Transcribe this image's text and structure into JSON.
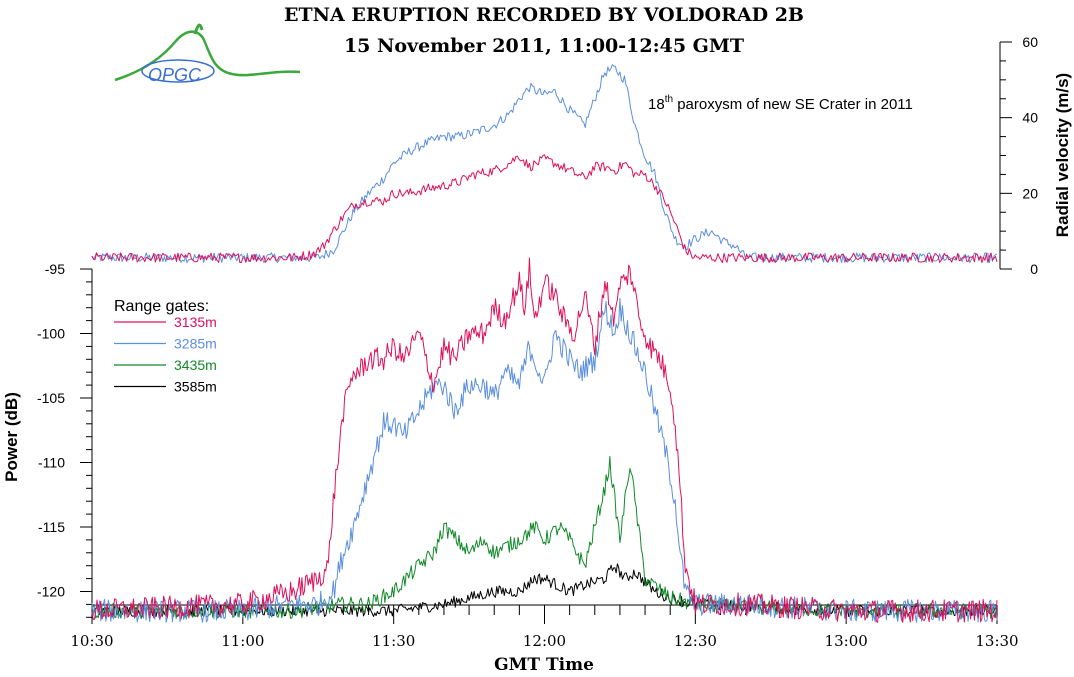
{
  "titles": {
    "line1": "ETNA ERUPTION RECORDED BY VOLDORAD 2B",
    "line2": "15 November 2011, 11:00-12:45 GMT"
  },
  "logo": {
    "text": "OPGC"
  },
  "annotation": {
    "prefix": "18",
    "sup": "th",
    "suffix": " paroxysm of new SE Crater in 2011"
  },
  "colors": {
    "g3135": "#e0105a",
    "g3285": "#5b8fe0",
    "g3435": "#128a2a",
    "g3585": "#000000",
    "logo_green": "#3aa83a",
    "logo_blue": "#3a6fd0"
  },
  "chart_data": [
    {
      "type": "line",
      "title": "",
      "xlabel": "",
      "ylabel": "Radial velocity (m/s)",
      "y_axis_side": "right",
      "ylim": [
        0,
        60
      ],
      "yticks": [
        0,
        20,
        40,
        60
      ],
      "xlim": [
        "10:30",
        "13:30"
      ],
      "series": [
        {
          "name": "3135m",
          "color": "#e0105a",
          "x": [
            "10:30",
            "11:00",
            "11:05",
            "11:10",
            "11:14",
            "11:16",
            "11:18",
            "11:20",
            "11:22",
            "11:25",
            "11:28",
            "11:30",
            "11:33",
            "11:36",
            "11:40",
            "11:43",
            "11:46",
            "11:50",
            "11:53",
            "11:55",
            "11:57",
            "12:00",
            "12:02",
            "12:05",
            "12:08",
            "12:10",
            "12:12",
            "12:14",
            "12:16",
            "12:18",
            "12:20",
            "12:22",
            "12:24",
            "12:26",
            "12:28",
            "12:30",
            "12:40",
            "13:00",
            "13:30"
          ],
          "values": [
            3,
            3,
            3,
            3,
            4,
            6,
            10,
            14,
            17,
            18,
            18,
            20,
            20,
            21,
            22,
            23,
            25,
            26,
            28,
            30,
            27,
            29,
            28,
            26,
            24,
            27,
            27,
            26,
            28,
            25,
            25,
            22,
            18,
            12,
            5,
            3,
            3,
            3,
            3
          ]
        },
        {
          "name": "3285m",
          "color": "#5b8fe0",
          "x": [
            "10:30",
            "11:00",
            "11:05",
            "11:10",
            "11:15",
            "11:18",
            "11:20",
            "11:22",
            "11:25",
            "11:28",
            "11:30",
            "11:33",
            "11:36",
            "11:40",
            "11:43",
            "11:46",
            "11:50",
            "11:53",
            "11:55",
            "11:57",
            "12:00",
            "12:02",
            "12:05",
            "12:08",
            "12:10",
            "12:12",
            "12:14",
            "12:16",
            "12:18",
            "12:20",
            "12:22",
            "12:24",
            "12:26",
            "12:28",
            "12:30",
            "12:33",
            "12:36",
            "12:38",
            "12:40",
            "12:45",
            "13:00",
            "13:30"
          ],
          "values": [
            3,
            3,
            3,
            3,
            3,
            5,
            10,
            15,
            20,
            24,
            28,
            31,
            33,
            35,
            35,
            36,
            38,
            41,
            45,
            48,
            46,
            47,
            42,
            38,
            45,
            52,
            53,
            50,
            38,
            30,
            25,
            15,
            8,
            6,
            8,
            10,
            7,
            6,
            3,
            3,
            3,
            3
          ]
        },
        {
          "name": "3435m",
          "color": "#128a2a",
          "x": [],
          "values": []
        },
        {
          "name": "3585m",
          "color": "#000000",
          "x": [],
          "values": []
        }
      ]
    },
    {
      "type": "line",
      "title": "",
      "xlabel": "GMT Time",
      "ylabel": "Power (dB)",
      "ylim": [
        -122,
        -95
      ],
      "yticks": [
        -95,
        -100,
        -105,
        -110,
        -115,
        -120
      ],
      "xlim": [
        "10:30",
        "13:30"
      ],
      "xticks": [
        "10:30",
        "11:00",
        "11:30",
        "12:00",
        "12:30",
        "13:00",
        "13:30"
      ],
      "legend": {
        "title": "Range gates:",
        "position": "top-left"
      },
      "grid": false,
      "series": [
        {
          "name": "3135m",
          "color": "#e0105a",
          "x": [
            "10:30",
            "11:00",
            "11:10",
            "11:15",
            "11:17",
            "11:18",
            "11:20",
            "11:22",
            "11:23",
            "11:25",
            "11:28",
            "11:30",
            "11:32",
            "11:35",
            "11:38",
            "11:40",
            "11:42",
            "11:45",
            "11:48",
            "11:50",
            "11:52",
            "11:55",
            "11:56",
            "11:57",
            "11:58",
            "12:00",
            "12:02",
            "12:04",
            "12:06",
            "12:08",
            "12:10",
            "12:12",
            "12:14",
            "12:15",
            "12:16",
            "12:17",
            "12:19",
            "12:21",
            "12:23",
            "12:25",
            "12:26",
            "12:27",
            "12:28",
            "12:30",
            "12:35",
            "12:40",
            "13:00",
            "13:30"
          ],
          "values": [
            -121.5,
            -121,
            -120,
            -119,
            -118,
            -113,
            -106,
            -103,
            -103,
            -102,
            -102,
            -101,
            -102,
            -100,
            -104,
            -101,
            -102,
            -100,
            -100,
            -98,
            -99,
            -96,
            -98,
            -95,
            -99,
            -96,
            -97,
            -99,
            -100,
            -97,
            -101,
            -96,
            -99,
            -96,
            -96,
            -95,
            -99,
            -101,
            -102,
            -104,
            -107,
            -112,
            -118,
            -121,
            -121,
            -121,
            -121.5,
            -121.5
          ]
        },
        {
          "name": "3285m",
          "color": "#5b8fe0",
          "x": [
            "10:30",
            "11:00",
            "11:10",
            "11:15",
            "11:18",
            "11:20",
            "11:22",
            "11:25",
            "11:28",
            "11:30",
            "11:32",
            "11:35",
            "11:38",
            "11:40",
            "11:42",
            "11:45",
            "11:48",
            "11:50",
            "11:52",
            "11:55",
            "11:57",
            "12:00",
            "12:02",
            "12:05",
            "12:07",
            "12:10",
            "12:12",
            "12:14",
            "12:15",
            "12:16",
            "12:18",
            "12:20",
            "12:22",
            "12:24",
            "12:26",
            "12:27",
            "12:28",
            "12:30",
            "12:35",
            "12:40",
            "13:00",
            "13:30"
          ],
          "values": [
            -121.5,
            -121.5,
            -121,
            -121,
            -120,
            -117,
            -115,
            -111,
            -107,
            -107,
            -108,
            -106,
            -104,
            -104,
            -106,
            -104,
            -104,
            -105,
            -103,
            -104,
            -101,
            -104,
            -100,
            -102,
            -103,
            -102,
            -98,
            -100,
            -98,
            -99,
            -101,
            -103,
            -106,
            -109,
            -113,
            -117,
            -120,
            -121,
            -121,
            -121,
            -121.5,
            -121.5
          ]
        },
        {
          "name": "3435m",
          "color": "#128a2a",
          "x": [
            "10:30",
            "11:10",
            "11:20",
            "11:25",
            "11:30",
            "11:35",
            "11:38",
            "11:40",
            "11:45",
            "11:48",
            "11:50",
            "11:55",
            "11:58",
            "12:00",
            "12:03",
            "12:05",
            "12:08",
            "12:10",
            "12:12",
            "12:13",
            "12:15",
            "12:17",
            "12:20",
            "12:25",
            "12:30",
            "13:00",
            "13:30"
          ],
          "values": [
            -121.5,
            -121.5,
            -121,
            -121,
            -120,
            -118,
            -117,
            -115,
            -117,
            -116,
            -117,
            -116,
            -115,
            -116,
            -115,
            -116,
            -118,
            -115,
            -112,
            -110,
            -116,
            -110,
            -119,
            -120.5,
            -121,
            -121.5,
            -121.5
          ]
        },
        {
          "name": "3585m",
          "color": "#000000",
          "x": [
            "10:30",
            "11:10",
            "11:20",
            "11:30",
            "11:40",
            "11:45",
            "11:50",
            "11:55",
            "11:58",
            "12:00",
            "12:05",
            "12:08",
            "12:12",
            "12:14",
            "12:16",
            "12:18",
            "12:22",
            "12:25",
            "12:30",
            "13:00",
            "13:30"
          ],
          "values": [
            -121.5,
            -121.5,
            -121.5,
            -121.5,
            -121,
            -120.5,
            -120,
            -120,
            -119,
            -119,
            -120,
            -119.5,
            -119,
            -118,
            -119,
            -118.5,
            -120,
            -120.5,
            -121,
            -121.5,
            -121.5
          ]
        }
      ]
    }
  ]
}
